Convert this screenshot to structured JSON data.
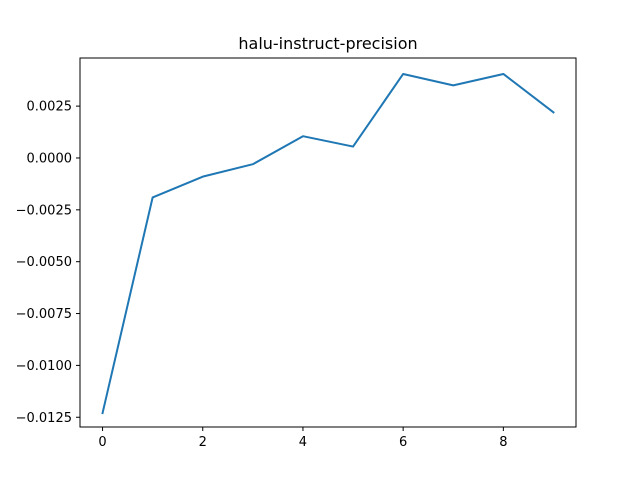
{
  "chart_data": {
    "type": "line",
    "title": "halu-instruct-precision",
    "xlabel": "",
    "ylabel": "",
    "x": [
      0,
      1,
      2,
      3,
      4,
      5,
      6,
      7,
      8,
      9
    ],
    "series": [
      {
        "values": [
          -0.0123,
          -0.0019,
          -0.0009,
          -0.0003,
          0.00105,
          0.00055,
          0.00405,
          0.0035,
          0.00405,
          0.0022
        ],
        "color": "#1f77b4"
      }
    ],
    "xlim": [
      -0.45,
      9.45
    ],
    "ylim": [
      -0.01297,
      0.00482
    ],
    "x_ticks": [
      0,
      2,
      4,
      6,
      8
    ],
    "x_tick_labels": [
      "0",
      "2",
      "4",
      "6",
      "8"
    ],
    "y_ticks": [
      -0.0125,
      -0.01,
      -0.0075,
      -0.005,
      -0.0025,
      0.0,
      0.0025
    ],
    "y_tick_labels": [
      "−0.0125",
      "−0.0100",
      "−0.0075",
      "−0.0050",
      "−0.0025",
      "0.0000",
      "0.0025"
    ],
    "grid": false,
    "legend": "none"
  }
}
